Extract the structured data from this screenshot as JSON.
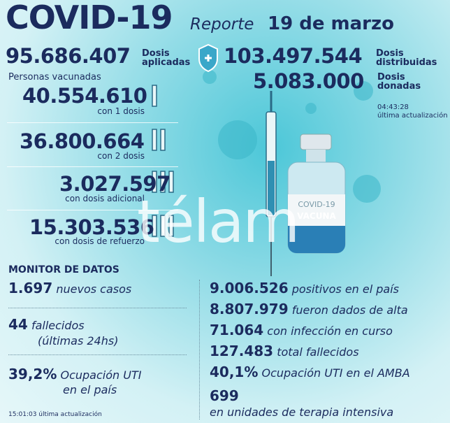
{
  "header": {
    "title": "COVID-19",
    "report_label": "Reporte",
    "date": "19 de marzo"
  },
  "doses": {
    "applied": {
      "value": "95.686.407",
      "label": "Dosis aplicadas"
    },
    "distributed": {
      "value": "103.497.544",
      "label": "Dosis distribuidas"
    },
    "donated": {
      "value": "5.083.000",
      "label": "Dosis donadas"
    }
  },
  "vaccinated": {
    "title": "Personas vacunadas",
    "rows": [
      {
        "value": "40.554.610",
        "label": "con 1 dosis"
      },
      {
        "value": "36.800.664",
        "label": "con 2 dosis"
      },
      {
        "value": "3.027.597",
        "label": "con dosis adicional"
      },
      {
        "value": "15.303.536",
        "label": "con dosis de refuerzo"
      }
    ]
  },
  "vaccine_update": {
    "time": "04:43:28",
    "label": "última actualización"
  },
  "vial": {
    "line1": "COVID-19",
    "line2": "VACUNA"
  },
  "watermark": "télam",
  "monitor": {
    "title": "MONITOR DE DATOS",
    "left": [
      {
        "value": "1.697",
        "label": "nuevos casos"
      },
      {
        "value": "44",
        "label": "fallecidos",
        "sublabel": "(últimas 24hs)"
      },
      {
        "value": "39,2%",
        "label": "Ocupación UTI",
        "sublabel": "en el país"
      }
    ],
    "right": [
      {
        "value": "9.006.526",
        "label": "positivos en el país"
      },
      {
        "value": "8.807.979",
        "label": "fueron dados de alta"
      },
      {
        "value": "71.064",
        "label": "con infección en curso"
      },
      {
        "value": "127.483",
        "label": "total fallecidos"
      },
      {
        "value": "40,1%",
        "label": "Ocupación UTI en el AMBA"
      },
      {
        "value": "699",
        "label": "en unidades de terapia intensiva"
      }
    ],
    "update": {
      "time": "15:01:03",
      "label": "última actualización"
    }
  }
}
